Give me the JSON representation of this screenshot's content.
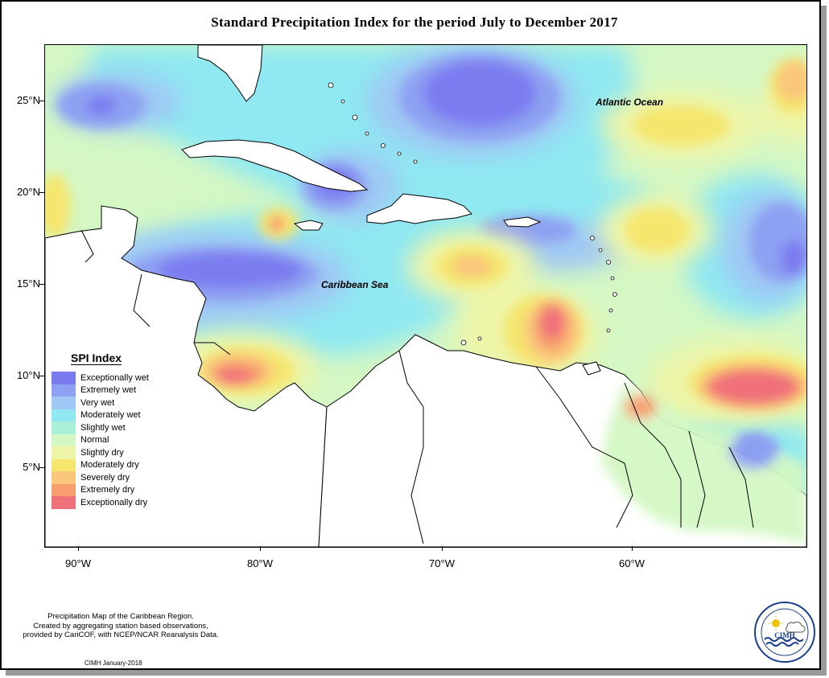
{
  "title": "Standard Precipitation Index for the period July to December 2017",
  "axes": {
    "y_labels": [
      "25°N",
      "20°N",
      "15°N",
      "10°N",
      "5°N"
    ],
    "x_labels": [
      "90°W",
      "80°W",
      "70°W",
      "60°W"
    ]
  },
  "map_labels": {
    "atlantic": "Atlantic Ocean",
    "caribbean": "Caribbean Sea"
  },
  "legend": {
    "title": "SPI Index",
    "items": [
      {
        "label": "Exceptionally wet",
        "color": "#7b7bf0"
      },
      {
        "label": "Extremely wet",
        "color": "#8ea0f2"
      },
      {
        "label": "Very wet",
        "color": "#9fc8f4"
      },
      {
        "label": "Moderately wet",
        "color": "#8fe8f2"
      },
      {
        "label": "Slightly wet",
        "color": "#a9f0d8"
      },
      {
        "label": "Normal",
        "color": "#d4f7c4"
      },
      {
        "label": "Slightly dry",
        "color": "#eef5a8"
      },
      {
        "label": "Moderately dry",
        "color": "#f5e66e"
      },
      {
        "label": "Severely dry",
        "color": "#f9c67a"
      },
      {
        "label": "Extremely dry",
        "color": "#f79e6e"
      },
      {
        "label": "Exceptionally dry",
        "color": "#f0707a"
      }
    ]
  },
  "footnote": {
    "line1": "Precipitation Map of the Caribbean Region.",
    "line2": "Created by aggregating station based observations,",
    "line3": "provided by CariCOF, with NCEP/NCAR Reanalysis Data."
  },
  "credit": "CIMH January-2018",
  "logo": {
    "text": "CIMH",
    "ring_text": "Caribbean Institute for Meteorology and Hydrology"
  }
}
